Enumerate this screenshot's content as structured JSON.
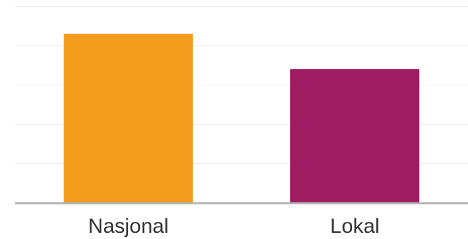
{
  "chart_data": {
    "type": "bar",
    "categories": [
      "Nasjonal",
      "Lokal"
    ],
    "values": [
      4.3,
      3.4
    ],
    "colors": [
      "#f59c1e",
      "#a01c62"
    ],
    "ylim": [
      0,
      5
    ],
    "grid": true,
    "title": "",
    "xlabel": "",
    "ylabel": ""
  }
}
